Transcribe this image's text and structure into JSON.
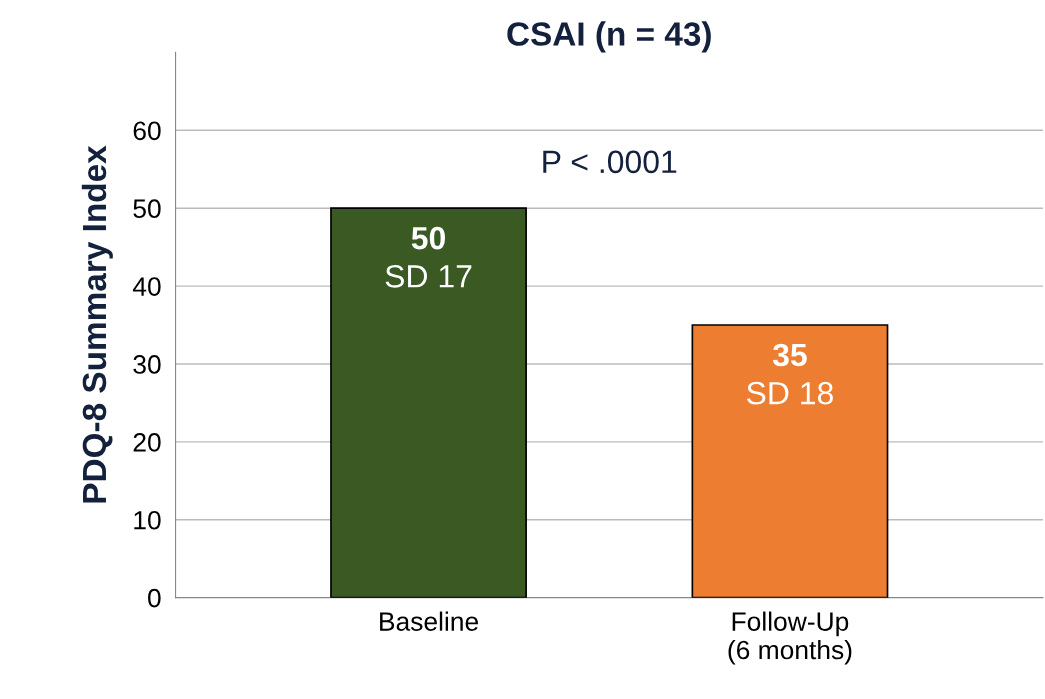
{
  "chart_data": {
    "type": "bar",
    "title": "CSAI (n = 43)",
    "ylabel": "PDQ-8 Summary Index",
    "categories": [
      "Baseline",
      "Follow-Up\n(6 months)"
    ],
    "values": [
      50,
      35
    ],
    "colors": [
      "#3b5a23",
      "#ed7d31"
    ],
    "value_labels": [
      "50",
      "35"
    ],
    "annotations": [
      {
        "text": "SD 17",
        "x": "Baseline",
        "y": 50
      },
      {
        "text": "SD 18",
        "x": "Follow-Up\n(6 months)",
        "y": 35
      },
      "P < .0001"
    ],
    "ylim": [
      0,
      70
    ],
    "yticks": [
      0,
      10,
      20,
      30,
      40,
      50,
      60
    ],
    "grid": "y",
    "legend": false
  }
}
